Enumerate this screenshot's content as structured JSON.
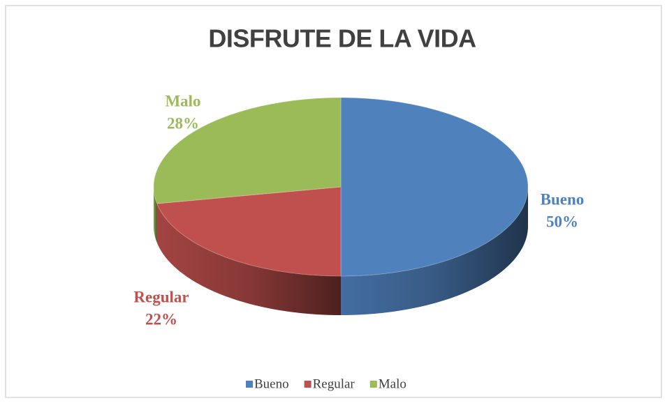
{
  "chart_data": {
    "type": "pie",
    "title": "DISFRUTE DE LA VIDA",
    "categories": [
      "Bueno",
      "Regular",
      "Malo"
    ],
    "values": [
      50,
      22,
      28
    ],
    "value_labels": [
      "50%",
      "22%",
      "28%"
    ],
    "colors": [
      "#4f81bd",
      "#c0504d",
      "#9bbb59"
    ],
    "legend": "bottom"
  }
}
